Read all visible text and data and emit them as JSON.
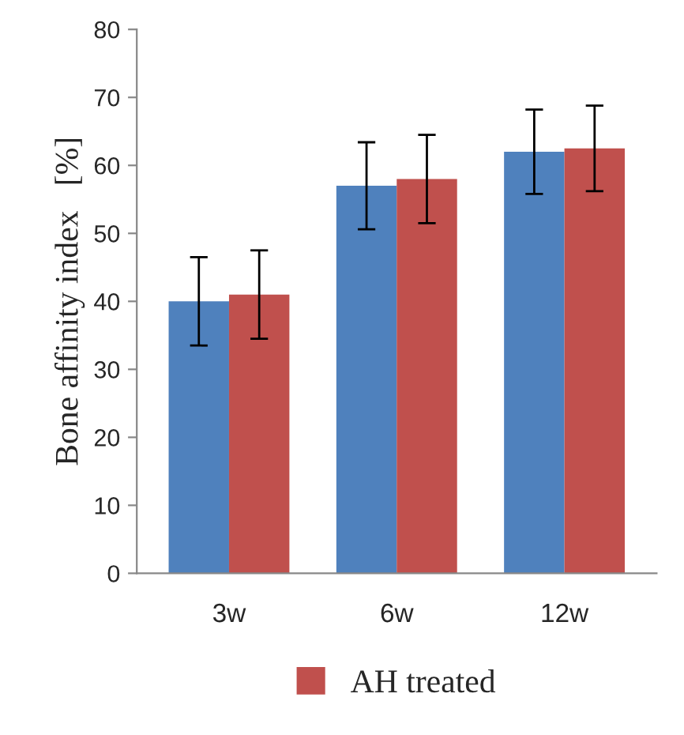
{
  "chart_data": {
    "type": "bar",
    "ylabel": "Bone affinity index   [%]",
    "categories": [
      "3w",
      "6w",
      "12w"
    ],
    "series": [
      {
        "color": "#4f81bd",
        "values": [
          40,
          57,
          62
        ],
        "errors": [
          6.5,
          6.4,
          6.2
        ]
      },
      {
        "name": "AH treated",
        "color": "#c0504d",
        "values": [
          41,
          58,
          62.5
        ],
        "errors": [
          6.5,
          6.5,
          6.3
        ]
      }
    ],
    "ylim": [
      0,
      80
    ],
    "yticks": [
      0,
      10,
      20,
      30,
      40,
      50,
      60,
      70,
      80
    ],
    "grid": false,
    "legend": "bottom"
  }
}
